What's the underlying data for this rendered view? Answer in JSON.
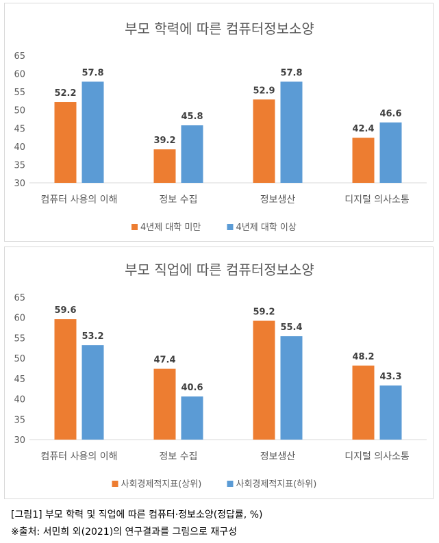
{
  "colors": {
    "series_a": "#ed7d31",
    "series_b": "#5b9bd5",
    "axis": "#d9d9d9",
    "text": "#595959"
  },
  "chart_data": [
    {
      "type": "bar",
      "title": "부모 학력에 따른 컴퓨터정보소양",
      "categories": [
        "컴퓨터 사용의 이해",
        "정보 수집",
        "정보생산",
        "디지털 의사소통"
      ],
      "series": [
        {
          "name": "4년제 대학 미만",
          "values": [
            52.2,
            39.2,
            52.9,
            42.4
          ]
        },
        {
          "name": "4년제 대학 이상",
          "values": [
            57.8,
            45.8,
            57.8,
            46.6
          ]
        }
      ],
      "ylim": [
        30,
        65
      ],
      "yticks": [
        30,
        35,
        40,
        45,
        50,
        55,
        60,
        65
      ],
      "grid": false,
      "legend": "bottom"
    },
    {
      "type": "bar",
      "title": "부모 직업에 따른 컴퓨터정보소양",
      "categories": [
        "컴퓨터 사용의 이해",
        "정보 수집",
        "정보생산",
        "디지털 의사소통"
      ],
      "series": [
        {
          "name": "사회경제적지표(상위)",
          "values": [
            59.6,
            47.4,
            59.2,
            48.2
          ]
        },
        {
          "name": "사회경제적지표(하위)",
          "values": [
            53.2,
            40.6,
            55.4,
            43.3
          ]
        }
      ],
      "ylim": [
        30,
        65
      ],
      "yticks": [
        30,
        35,
        40,
        45,
        50,
        55,
        60,
        65
      ],
      "grid": false,
      "legend": "bottom"
    }
  ],
  "caption": {
    "figure": "[그림1] 부모 학력 및 직업에 따른 컴퓨터·정보소양(정답률, %)",
    "source": "※출처: 서민희 외(2021)의 연구결과를 그림으로 재구성"
  }
}
